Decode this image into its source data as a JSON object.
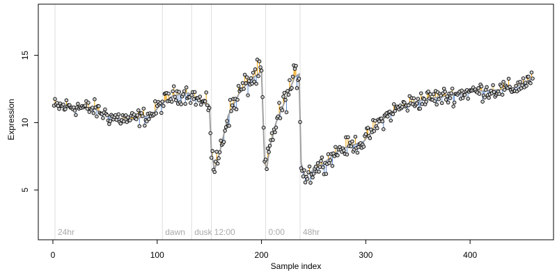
{
  "chart_data": {
    "type": "scatter",
    "title": "",
    "xlabel": "Sample index",
    "ylabel": "Expression",
    "xlim": [
      -14,
      480
    ],
    "ylim": [
      1.3,
      18.8
    ],
    "x_ticks": [
      0,
      100,
      200,
      300,
      400
    ],
    "y_ticks": [
      5,
      10,
      15
    ],
    "grid": false,
    "legend": "none",
    "colors": {
      "points_fill": "#cccccc",
      "points_stroke": "#000000",
      "fit_line": "#a0a0a0",
      "residual_up": "#f0a000",
      "residual_down": "#5b8ad0",
      "markers": "#dddddd",
      "annotation": "#a8a8a8"
    },
    "markers": [
      {
        "x": 2,
        "label": "24hr"
      },
      {
        "x": 105,
        "label": "dawn"
      },
      {
        "x": 133,
        "label": "dusk"
      },
      {
        "x": 152,
        "label": "12:00"
      },
      {
        "x": 204,
        "label": "0:00"
      },
      {
        "x": 237,
        "label": "48hr"
      }
    ],
    "fit_knots": [
      [
        1,
        11.2
      ],
      [
        20,
        11.2
      ],
      [
        40,
        11.0
      ],
      [
        56,
        10.4
      ],
      [
        75,
        10.2
      ],
      [
        95,
        10.6
      ],
      [
        104,
        11.4
      ],
      [
        115,
        12.0
      ],
      [
        130,
        12.2
      ],
      [
        145,
        11.4
      ],
      [
        150,
        11.3
      ],
      [
        152,
        7.8
      ],
      [
        155,
        6.5
      ],
      [
        160,
        7.8
      ],
      [
        168,
        10.5
      ],
      [
        180,
        12.4
      ],
      [
        193,
        13.4
      ],
      [
        200,
        13.8
      ],
      [
        203,
        7.0
      ],
      [
        205,
        6.6
      ],
      [
        208,
        8.2
      ],
      [
        214,
        10.0
      ],
      [
        222,
        11.5
      ],
      [
        232,
        13.4
      ],
      [
        236,
        13.6
      ],
      [
        238,
        7.0
      ],
      [
        242,
        6.0
      ],
      [
        250,
        6.5
      ],
      [
        260,
        7.0
      ],
      [
        275,
        8.0
      ],
      [
        290,
        8.4
      ],
      [
        298,
        8.6
      ],
      [
        310,
        9.8
      ],
      [
        325,
        10.8
      ],
      [
        340,
        11.4
      ],
      [
        360,
        11.8
      ],
      [
        380,
        12.0
      ],
      [
        400,
        12.3
      ],
      [
        420,
        12.4
      ],
      [
        440,
        12.5
      ],
      [
        460,
        13.3
      ]
    ]
  }
}
